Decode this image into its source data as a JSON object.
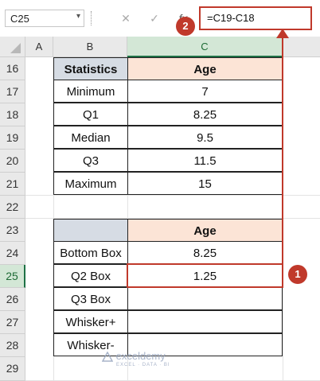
{
  "formula_bar": {
    "name_box": "C25",
    "name_arrow": "▾",
    "cancel": "✕",
    "enter": "✓",
    "fx": "fx",
    "formula": "=C19-C18"
  },
  "columns": [
    "A",
    "B",
    "C"
  ],
  "rows": [
    "16",
    "17",
    "18",
    "19",
    "20",
    "21",
    "22",
    "23",
    "24",
    "25",
    "26",
    "27",
    "28",
    "29"
  ],
  "table1": {
    "header": {
      "label": "Statistics",
      "value": "Age"
    },
    "rows": [
      {
        "label": "Minimum",
        "value": "7"
      },
      {
        "label": "Q1",
        "value": "8.25"
      },
      {
        "label": "Median",
        "value": "9.5"
      },
      {
        "label": "Q3",
        "value": "11.5"
      },
      {
        "label": "Maximum",
        "value": "15"
      }
    ]
  },
  "table2": {
    "header": {
      "label": "",
      "value": "Age"
    },
    "rows": [
      {
        "label": "Bottom Box",
        "value": "8.25"
      },
      {
        "label": "Q2 Box",
        "value": "1.25"
      },
      {
        "label": "Q3 Box",
        "value": ""
      },
      {
        "label": "Whisker+",
        "value": ""
      },
      {
        "label": "Whisker-",
        "value": ""
      }
    ]
  },
  "annotations": {
    "badge1": "1",
    "badge2": "2"
  },
  "watermark": {
    "name": "exceldemy",
    "tagline": "EXCEL · DATA · BI"
  },
  "colors": {
    "accent": "#c0392b",
    "selected_header": "#1e7145"
  }
}
